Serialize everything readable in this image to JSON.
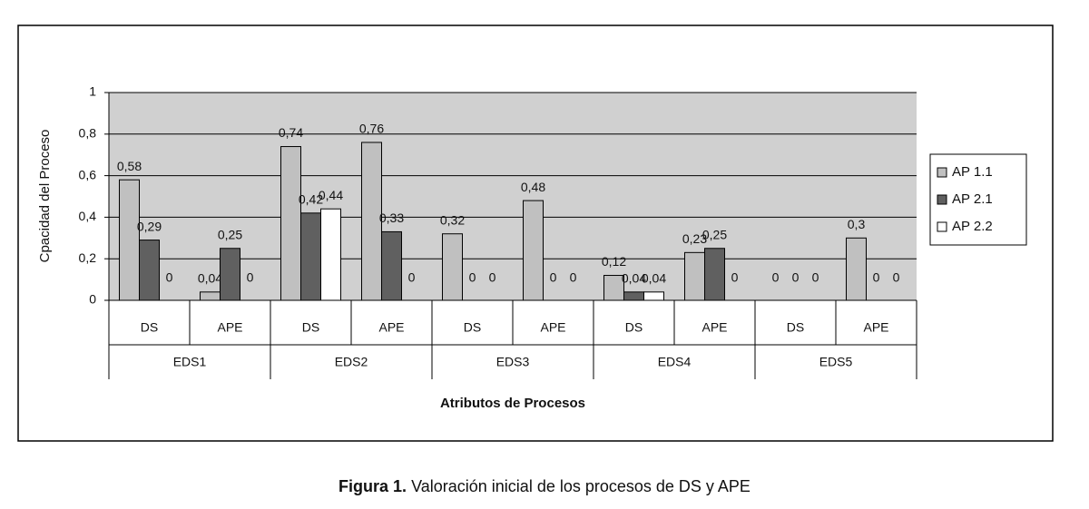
{
  "chart_data": {
    "type": "bar",
    "x_label": "Atributos de Procesos",
    "y_label": "Cpacidad del Proceso",
    "categories": [
      "DS",
      "APE",
      "DS",
      "APE",
      "DS",
      "APE",
      "DS",
      "APE",
      "DS",
      "APE"
    ],
    "groups": [
      "EDS1",
      "EDS2",
      "EDS3",
      "EDS4",
      "EDS5"
    ],
    "series": [
      {
        "name": "AP 1.1",
        "color": "#c0c0c0",
        "values": [
          0.58,
          0.04,
          0.74,
          0.76,
          0.32,
          0.48,
          0.12,
          0.23,
          0,
          0.3
        ],
        "value_labels": [
          "0,58",
          "0,04",
          "0,74",
          "0,76",
          "0,32",
          "0,48",
          "0,12",
          "0,23",
          "0",
          "0,3"
        ]
      },
      {
        "name": "AP 2.1",
        "color": "#606060",
        "values": [
          0.29,
          0.25,
          0.42,
          0.33,
          0,
          0,
          0.04,
          0.25,
          0,
          0
        ],
        "value_labels": [
          "0,29",
          "0,25",
          "0,42",
          "0,33",
          "0",
          "0",
          "0,04",
          "0,25",
          "0",
          "0"
        ]
      },
      {
        "name": "AP 2.2",
        "color": "#ffffff",
        "values": [
          0,
          0,
          0.44,
          0,
          0,
          0,
          0.04,
          0,
          0,
          0
        ],
        "value_labels": [
          "0",
          "0",
          "0,44",
          "0",
          "0",
          "0",
          "0,04",
          "0",
          "0",
          "0"
        ]
      }
    ],
    "ylim": [
      0,
      1
    ],
    "yticks": [
      0,
      {
        "value": 0.2,
        "label": "0,2"
      },
      {
        "value": 0.4,
        "label": "0,4"
      },
      {
        "value": 0.6,
        "label": "0,6"
      },
      {
        "value": 0.8,
        "label": "0,8"
      },
      1
    ],
    "grid": true,
    "plot_background": "#d0d0d0",
    "legend": "right"
  },
  "caption": {
    "label": "Figura 1.",
    "text": "Valoración inicial de los procesos de DS y APE"
  }
}
